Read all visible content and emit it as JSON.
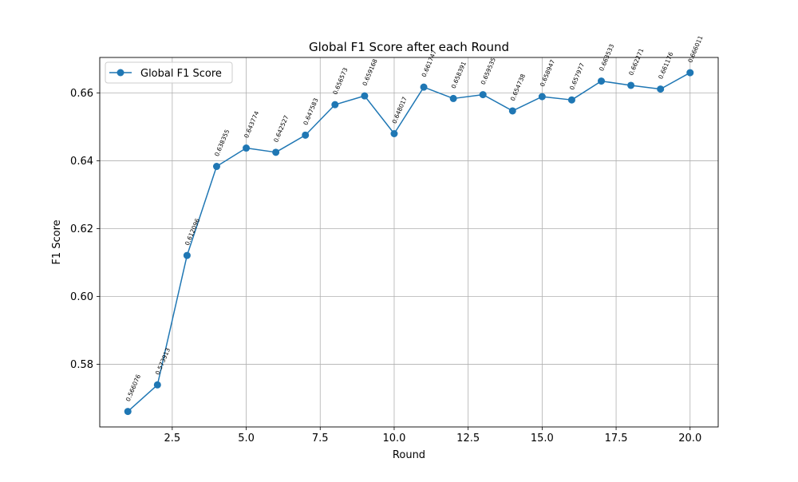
{
  "chart_data": {
    "type": "line",
    "title": "Global F1 Score after each Round",
    "xlabel": "Round",
    "ylabel": "F1 Score",
    "xlim": [
      0.05,
      20.95
    ],
    "ylim": [
      0.5615,
      0.6705
    ],
    "xticks": [
      2.5,
      5.0,
      7.5,
      10.0,
      12.5,
      15.0,
      17.5,
      20.0
    ],
    "xtick_labels": [
      "2.5",
      "5.0",
      "7.5",
      "10.0",
      "12.5",
      "15.0",
      "17.5",
      "20.0"
    ],
    "yticks": [
      0.58,
      0.6,
      0.62,
      0.64,
      0.66
    ],
    "ytick_labels": [
      "0.58",
      "0.60",
      "0.62",
      "0.64",
      "0.66"
    ],
    "grid": true,
    "legend_position": "upper-left",
    "series": [
      {
        "name": "Global F1 Score",
        "color": "#1f77b4",
        "marker": "circle",
        "x": [
          1,
          2,
          3,
          4,
          5,
          6,
          7,
          8,
          9,
          10,
          11,
          12,
          13,
          14,
          15,
          16,
          17,
          18,
          19,
          20
        ],
        "y": [
          0.566076,
          0.573913,
          0.612096,
          0.638355,
          0.643774,
          0.642527,
          0.647583,
          0.656573,
          0.659168,
          0.648017,
          0.661747,
          0.658391,
          0.659535,
          0.654738,
          0.658947,
          0.657977,
          0.663533,
          0.662271,
          0.661176,
          0.666011
        ],
        "labels": [
          "0.566076",
          "0.573913",
          "0.612096",
          "0.638355",
          "0.643774",
          "0.642527",
          "0.647583",
          "0.656573",
          "0.659168",
          "0.648017",
          "0.661747",
          "0.658391",
          "0.659535",
          "0.654738",
          "0.658947",
          "0.657977",
          "0.663533",
          "0.662271",
          "0.661176",
          "0.666011"
        ]
      }
    ]
  }
}
